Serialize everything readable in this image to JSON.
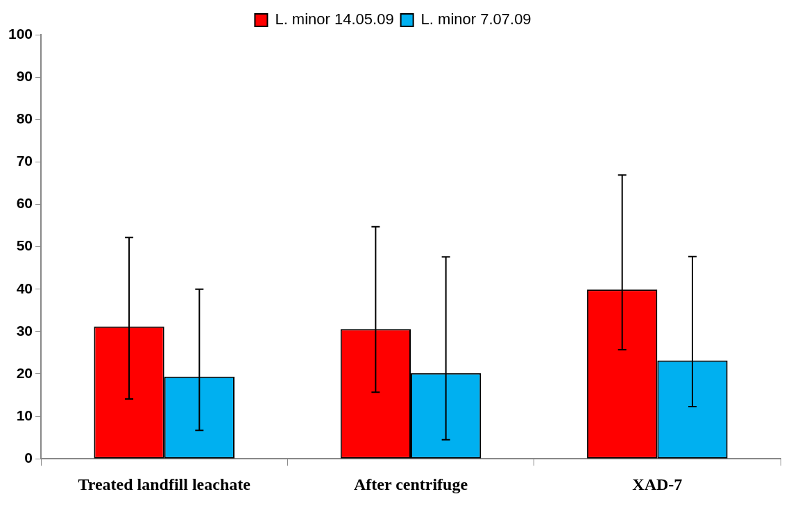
{
  "chart_data": {
    "type": "bar",
    "categories": [
      "Treated landfill leachate",
      "After centrifuge",
      "XAD-7"
    ],
    "series": [
      {
        "name": "L. minor 14.05.09",
        "color": "#ff0000",
        "values": [
          31.2,
          30.6,
          39.9
        ],
        "errors": [
          [
            14.1,
            52.2
          ],
          [
            15.7,
            54.7
          ],
          [
            25.7,
            66.9
          ]
        ]
      },
      {
        "name": "L. minor 7.07.09",
        "color": "#00b0f0",
        "values": [
          19.4,
          20.2,
          23.2
        ],
        "errors": [
          [
            6.7,
            40.0
          ],
          [
            4.5,
            47.6
          ],
          [
            12.3,
            47.7
          ]
        ]
      }
    ],
    "ylim": [
      0,
      100
    ],
    "yticks": [
      0,
      10,
      20,
      30,
      40,
      50,
      60,
      70,
      80,
      90,
      100
    ],
    "legend": "top"
  }
}
